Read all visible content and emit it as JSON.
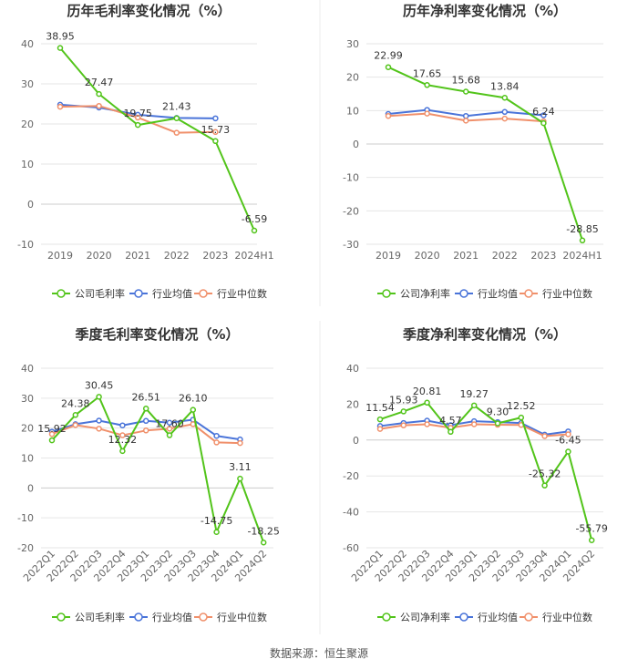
{
  "source": "数据来源：恒生聚源",
  "colors": {
    "company": "#52c41a",
    "industry_avg": "#4a74d9",
    "industry_median": "#f0906b",
    "grid": "#e6e6e6",
    "axis": "#cccccc"
  },
  "chart_data": [
    {
      "type": "line",
      "title": "历年毛利率变化情况（%）",
      "categories": [
        "2019",
        "2020",
        "2021",
        "2022",
        "2023",
        "2024H1"
      ],
      "ylim": [
        -10,
        40
      ],
      "yticks": [
        -10,
        0,
        10,
        20,
        30,
        40
      ],
      "legend": "bottom",
      "series": [
        {
          "name": "公司毛利率",
          "key": "company",
          "values": [
            38.95,
            27.47,
            19.75,
            21.43,
            15.73,
            -6.59
          ],
          "labels": [
            "38.95",
            "27.47",
            "19.75",
            "21.43",
            "15.73",
            "-6.59"
          ]
        },
        {
          "name": "行业均值",
          "key": "industry_avg",
          "values": [
            24.8,
            24.1,
            22.3,
            21.5,
            21.4,
            null
          ]
        },
        {
          "name": "行业中位数",
          "key": "industry_median",
          "values": [
            24.3,
            24.5,
            21.6,
            17.8,
            18.0,
            null
          ]
        }
      ]
    },
    {
      "type": "line",
      "title": "历年净利率变化情况（%）",
      "categories": [
        "2019",
        "2020",
        "2021",
        "2022",
        "2023",
        "2024H1"
      ],
      "ylim": [
        -30,
        30
      ],
      "yticks": [
        -30,
        -20,
        -10,
        0,
        10,
        20,
        30
      ],
      "legend": "bottom",
      "series": [
        {
          "name": "公司净利率",
          "key": "company",
          "values": [
            22.99,
            17.65,
            15.68,
            13.84,
            6.24,
            -28.85
          ],
          "labels": [
            "22.99",
            "17.65",
            "15.68",
            "13.84",
            "6.24",
            "-28.85"
          ]
        },
        {
          "name": "行业均值",
          "key": "industry_avg",
          "values": [
            9.0,
            10.2,
            8.4,
            9.6,
            8.6,
            null
          ]
        },
        {
          "name": "行业中位数",
          "key": "industry_median",
          "values": [
            8.4,
            9.1,
            7.0,
            7.6,
            6.8,
            null
          ]
        }
      ]
    },
    {
      "type": "line",
      "title": "季度毛利率变化情况（%）",
      "categories": [
        "2022Q1",
        "2022Q2",
        "2022Q3",
        "2022Q4",
        "2023Q1",
        "2023Q2",
        "2023Q3",
        "2023Q4",
        "2024Q1",
        "2024Q2"
      ],
      "ylim": [
        -20,
        40
      ],
      "yticks": [
        -20,
        -10,
        0,
        10,
        20,
        30,
        40
      ],
      "legend": "bottom",
      "series": [
        {
          "name": "公司毛利率",
          "key": "company",
          "values": [
            15.92,
            24.38,
            30.45,
            12.32,
            26.51,
            17.6,
            26.1,
            -14.75,
            3.11,
            -18.25
          ],
          "labels": [
            "15.92",
            "24.38",
            "30.45",
            "12.32",
            "26.51",
            "17.60",
            "26.10",
            "-14.75",
            "3.11",
            "-18.25"
          ]
        },
        {
          "name": "行业均值",
          "key": "industry_avg",
          "values": [
            18.8,
            21.3,
            22.5,
            20.9,
            22.4,
            21.8,
            22.8,
            17.4,
            16.2,
            null
          ]
        },
        {
          "name": "行业中位数",
          "key": "industry_median",
          "values": [
            18.0,
            21.0,
            19.8,
            17.6,
            19.2,
            19.8,
            21.3,
            15.2,
            15.0,
            null
          ]
        }
      ]
    },
    {
      "type": "line",
      "title": "季度净利率变化情况（%）",
      "categories": [
        "2022Q1",
        "2022Q2",
        "2022Q3",
        "2022Q4",
        "2023Q1",
        "2023Q2",
        "2023Q3",
        "2023Q4",
        "2024Q1",
        "2024Q2"
      ],
      "ylim": [
        -60,
        40
      ],
      "yticks": [
        -60,
        -40,
        -20,
        0,
        20,
        40
      ],
      "legend": "bottom",
      "series": [
        {
          "name": "公司净利率",
          "key": "company",
          "values": [
            11.54,
            15.93,
            20.81,
            4.57,
            19.27,
            9.3,
            12.52,
            -25.32,
            -6.45,
            -55.79
          ],
          "labels": [
            "11.54",
            "15.93",
            "20.81",
            "4.57",
            "19.27",
            "9.30",
            "12.52",
            "-25.32",
            "-6.45",
            "-55.79"
          ]
        },
        {
          "name": "行业均值",
          "key": "industry_avg",
          "values": [
            7.8,
            9.5,
            10.8,
            8.3,
            10.5,
            10.0,
            9.5,
            3.0,
            4.8,
            null
          ]
        },
        {
          "name": "行业中位数",
          "key": "industry_median",
          "values": [
            6.2,
            8.2,
            8.8,
            6.8,
            8.8,
            8.5,
            8.4,
            2.2,
            3.2,
            null
          ]
        }
      ]
    }
  ]
}
